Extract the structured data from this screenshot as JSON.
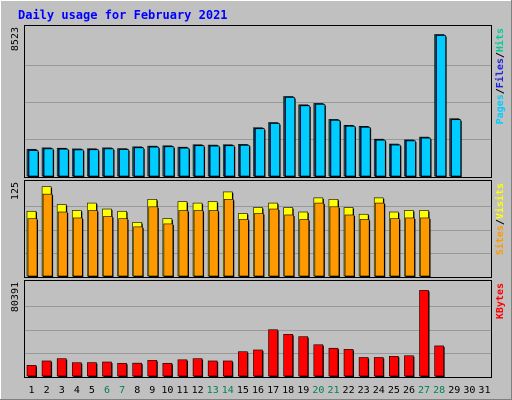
{
  "chart_data": {
    "type": "bar",
    "title": "Daily usage for February 2021",
    "categories": [
      "1",
      "2",
      "3",
      "4",
      "5",
      "6",
      "7",
      "8",
      "9",
      "10",
      "11",
      "12",
      "13",
      "14",
      "15",
      "16",
      "17",
      "18",
      "19",
      "20",
      "21",
      "22",
      "23",
      "24",
      "25",
      "26",
      "27",
      "28",
      "29",
      "30",
      "31"
    ],
    "weekend_days": [
      "6",
      "7",
      "13",
      "14",
      "20",
      "21",
      "27",
      "28"
    ],
    "panels": [
      {
        "id": "hits",
        "ymax": 8523,
        "ymax_label": "8523",
        "side_label": [
          "Pages",
          "/",
          "Files",
          "/",
          "Hits"
        ],
        "series": [
          {
            "name": "Hits",
            "color": "#00cc99",
            "values": [
              1540,
              1620,
              1600,
              1560,
              1570,
              1620,
              1580,
              1680,
              1720,
              1740,
              1660,
              1800,
              1780,
              1800,
              1820,
              2780,
              3080,
              4580,
              4100,
              4180,
              3260,
              2920,
              2860,
              2120,
              1840,
              2080,
              2240,
              8150,
              3300,
              null,
              null
            ]
          },
          {
            "name": "Files",
            "color": "#2222dd",
            "values": [
              1500,
              1590,
              1570,
              1530,
              1540,
              1590,
              1550,
              1650,
              1690,
              1710,
              1630,
              1770,
              1750,
              1770,
              1790,
              2750,
              3050,
              4550,
              4070,
              4150,
              3230,
              2890,
              2830,
              2090,
              1810,
              2050,
              2210,
              8120,
              3270,
              null,
              null
            ]
          },
          {
            "name": "Pages",
            "color": "#00ccff",
            "values": [
              1460,
              1560,
              1540,
              1500,
              1510,
              1560,
              1520,
              1620,
              1660,
              1680,
              1600,
              1740,
              1720,
              1740,
              1760,
              2720,
              3020,
              4520,
              4040,
              4120,
              3200,
              2860,
              2800,
              2060,
              1780,
              2020,
              2180,
              8090,
              3240,
              null,
              null
            ]
          }
        ]
      },
      {
        "id": "visits",
        "ymax": 125,
        "ymax_label": "125",
        "side_label": [
          "Sites",
          "/",
          "Visits"
        ],
        "series": [
          {
            "name": "Visits",
            "color": "#ffff00",
            "values": [
              87,
              120,
              96,
              88,
              98,
              90,
              87,
              72,
              103,
              77,
              100,
              98,
              100,
              113,
              84,
              92,
              98,
              92,
              86,
              105,
              103,
              92,
              83,
              105,
              86,
              88,
              88,
              null,
              null,
              null,
              null
            ]
          },
          {
            "name": "Sites",
            "color": "#ff9900",
            "values": [
              77,
              110,
              86,
              78,
              88,
              80,
              77,
              66,
              93,
              70,
              88,
              88,
              88,
              103,
              76,
              84,
              90,
              82,
              76,
              98,
              93,
              82,
              76,
              98,
              77,
              78,
              78,
              null,
              null,
              null,
              null
            ]
          }
        ]
      },
      {
        "id": "kbytes",
        "ymax": 80391,
        "ymax_label": "80391",
        "side_label": [
          "KBytes"
        ],
        "series": [
          {
            "name": "KBytes",
            "color": "#ff0000",
            "values": [
              9200,
              13000,
              15000,
              11500,
              11600,
              12100,
              11000,
              11100,
              13500,
              11000,
              14000,
              15000,
              13000,
              13000,
              21000,
              22500,
              40000,
              36000,
              34000,
              27000,
              24000,
              23000,
              16000,
              16000,
              17000,
              17500,
              74000,
              26000,
              null,
              null,
              null
            ]
          }
        ]
      }
    ],
    "colors": {
      "background": "#c0c0c0",
      "plot_background": "#c0c0c0",
      "gridline": "#999999",
      "title": "#0000ff",
      "weekday_label": "#000000",
      "weekend_label": "#00805c"
    }
  }
}
